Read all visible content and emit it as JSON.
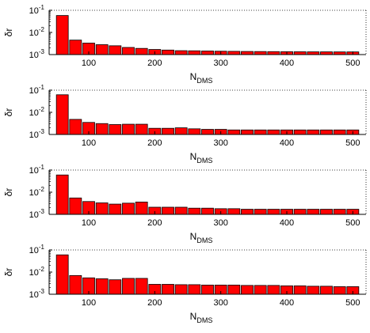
{
  "chart_data": [
    {
      "type": "bar",
      "x": [
        60,
        80,
        100,
        120,
        140,
        160,
        180,
        200,
        220,
        240,
        260,
        280,
        300,
        320,
        340,
        360,
        380,
        400,
        420,
        440,
        460,
        480,
        500
      ],
      "values": [
        0.058,
        0.0045,
        0.0033,
        0.0028,
        0.0025,
        0.0021,
        0.0019,
        0.0017,
        0.0016,
        0.0015,
        0.00148,
        0.00145,
        0.00142,
        0.0014,
        0.00138,
        0.00137,
        0.00136,
        0.00135,
        0.00134,
        0.00133,
        0.00133,
        0.00132,
        0.00132
      ],
      "xlabel": "N",
      "xlabel_sub": "DMS",
      "ylabel": "δr",
      "xlim": [
        40,
        520
      ],
      "ylim": [
        0.001,
        0.1
      ],
      "yscale": "log",
      "xticks": [
        "100",
        "200",
        "300",
        "400",
        "500"
      ],
      "yticks": [
        {
          "base": "10",
          "exp": "-1"
        },
        {
          "base": "10",
          "exp": "-2"
        },
        {
          "base": "10",
          "exp": "-3"
        }
      ],
      "color": "#ff0000"
    },
    {
      "type": "bar",
      "x": [
        60,
        80,
        100,
        120,
        140,
        160,
        180,
        200,
        220,
        240,
        260,
        280,
        300,
        320,
        340,
        360,
        380,
        400,
        420,
        440,
        460,
        480,
        500
      ],
      "values": [
        0.062,
        0.0048,
        0.0035,
        0.0031,
        0.0028,
        0.0029,
        0.0029,
        0.0019,
        0.0019,
        0.002,
        0.0018,
        0.0017,
        0.0017,
        0.0016,
        0.0016,
        0.0016,
        0.0016,
        0.0016,
        0.0016,
        0.0016,
        0.0016,
        0.0016,
        0.0016
      ],
      "xlabel": "N",
      "xlabel_sub": "DMS",
      "ylabel": "δr",
      "xlim": [
        40,
        520
      ],
      "ylim": [
        0.001,
        0.1
      ],
      "yscale": "log",
      "xticks": [
        "100",
        "200",
        "300",
        "400",
        "500"
      ],
      "yticks": [
        {
          "base": "10",
          "exp": "-1"
        },
        {
          "base": "10",
          "exp": "-2"
        },
        {
          "base": "10",
          "exp": "-3"
        }
      ],
      "color": "#ff0000"
    },
    {
      "type": "bar",
      "x": [
        60,
        80,
        100,
        120,
        140,
        160,
        180,
        200,
        220,
        240,
        260,
        280,
        300,
        320,
        340,
        360,
        380,
        400,
        420,
        440,
        460,
        480,
        500
      ],
      "values": [
        0.06,
        0.0055,
        0.0038,
        0.0033,
        0.0029,
        0.0032,
        0.0036,
        0.0021,
        0.0021,
        0.0021,
        0.0019,
        0.0019,
        0.0018,
        0.0018,
        0.0017,
        0.0017,
        0.0017,
        0.0017,
        0.0017,
        0.0017,
        0.0017,
        0.0017,
        0.0017
      ],
      "xlabel": "N",
      "xlabel_sub": "DMS",
      "ylabel": "δr",
      "xlim": [
        40,
        520
      ],
      "ylim": [
        0.001,
        0.1
      ],
      "yscale": "log",
      "xticks": [
        "100",
        "200",
        "300",
        "400",
        "500"
      ],
      "yticks": [
        {
          "base": "10",
          "exp": "-1"
        },
        {
          "base": "10",
          "exp": "-2"
        },
        {
          "base": "10",
          "exp": "-3"
        }
      ],
      "color": "#ff0000"
    },
    {
      "type": "bar",
      "x": [
        60,
        80,
        100,
        120,
        140,
        160,
        180,
        200,
        220,
        240,
        260,
        280,
        300,
        320,
        340,
        360,
        380,
        400,
        420,
        440,
        460,
        480,
        500
      ],
      "values": [
        0.06,
        0.007,
        0.0055,
        0.005,
        0.0045,
        0.0052,
        0.0052,
        0.0028,
        0.0028,
        0.0027,
        0.0027,
        0.0026,
        0.0026,
        0.0026,
        0.0025,
        0.0025,
        0.0025,
        0.0024,
        0.0024,
        0.0023,
        0.0023,
        0.0022,
        0.0022
      ],
      "xlabel": "N",
      "xlabel_sub": "DMS",
      "ylabel": "δr",
      "xlim": [
        40,
        520
      ],
      "ylim": [
        0.001,
        0.1
      ],
      "yscale": "log",
      "xticks": [
        "100",
        "200",
        "300",
        "400",
        "500"
      ],
      "yticks": [
        {
          "base": "10",
          "exp": "-1"
        },
        {
          "base": "10",
          "exp": "-2"
        },
        {
          "base": "10",
          "exp": "-3"
        }
      ],
      "color": "#ff0000"
    }
  ]
}
